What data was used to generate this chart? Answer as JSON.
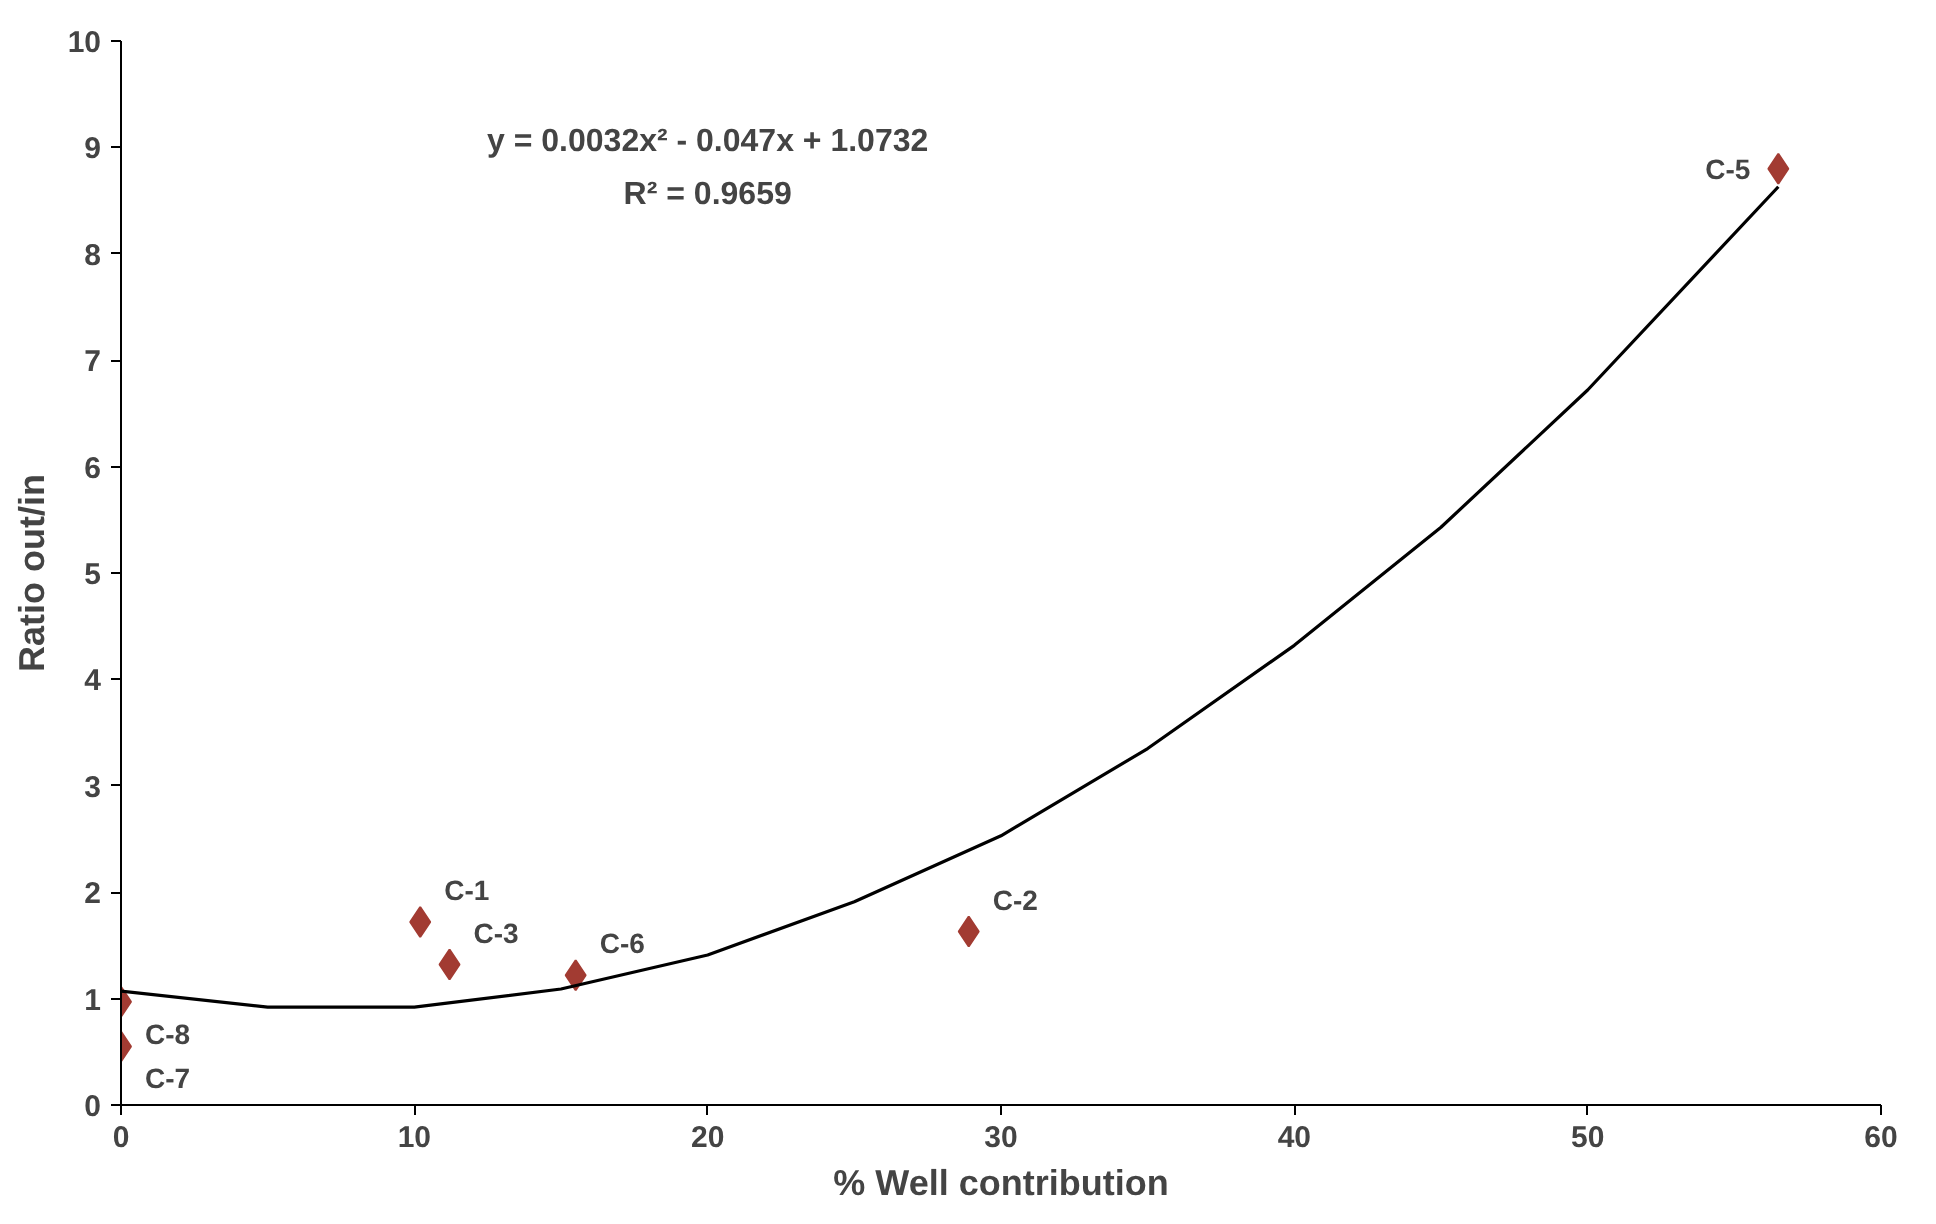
{
  "chart_data": {
    "type": "scatter",
    "xlabel": "% Well contribution",
    "ylabel": "Ratio out/in",
    "xlim": [
      0,
      60
    ],
    "ylim": [
      0,
      10
    ],
    "xticks": [
      0,
      10,
      20,
      30,
      40,
      50,
      60
    ],
    "yticks": [
      0,
      1,
      2,
      3,
      4,
      5,
      6,
      7,
      8,
      9,
      10
    ],
    "grid": false,
    "marker": "diamond",
    "series": [
      {
        "color": "#a23b32",
        "x": [
          0,
          0,
          10.2,
          11.2,
          15.5,
          28.9,
          56.5
        ],
        "values": [
          0.97,
          0.55,
          1.72,
          1.32,
          1.22,
          1.63,
          8.8
        ]
      },
      {
        "type": "line",
        "color": "#000000",
        "line_style": "solid",
        "marker": "none",
        "x": [
          0,
          5,
          10,
          15,
          20,
          25,
          30,
          35,
          40,
          45,
          50,
          56.5
        ],
        "values": [
          1.07,
          0.92,
          0.92,
          1.09,
          1.41,
          1.91,
          2.53,
          3.35,
          4.32,
          5.43,
          6.72,
          8.63
        ]
      }
    ],
    "annotations": [
      "y = 0.0032x² - 0.047x + 1.0732",
      "R² = 0.9659",
      {
        "text": "C-1",
        "x": 10.2,
        "y": 1.72
      },
      {
        "text": "C-6",
        "x": 15.5,
        "y": 1.22
      },
      {
        "text": "C-3",
        "x": 11.2,
        "y": 1.32
      },
      {
        "text": "C-2",
        "x": 28.9,
        "y": 1.63
      },
      {
        "text": "C-8",
        "x": 0,
        "y": 0.97
      },
      {
        "text": "C-7",
        "x": 0,
        "y": 0.55
      },
      {
        "text": "C-5",
        "x": 56.5,
        "y": 8.8
      }
    ]
  }
}
